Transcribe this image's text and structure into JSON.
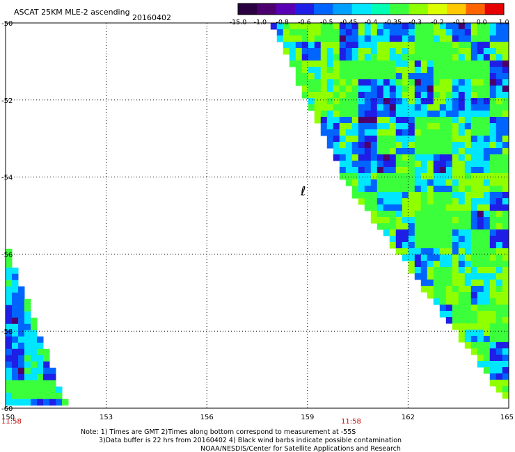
{
  "chart_data": {
    "type": "heatmap",
    "title": "ASCAT 25KM MLE-2 ascending",
    "date": "20160402",
    "x_ticks": [
      "150",
      "153",
      "156",
      "159",
      "162",
      "165"
    ],
    "y_ticks": [
      "-50",
      "-52",
      "-54",
      "-56",
      "-58",
      "-60"
    ],
    "xlim": [
      150,
      165
    ],
    "ylim": [
      -60,
      -50
    ],
    "grid": true,
    "time_labels": [
      {
        "lon": 150,
        "text": "11:58"
      },
      {
        "lon": 161,
        "text": "11:58"
      }
    ],
    "colorbar": {
      "labels": [
        "-15.0",
        "-1.0",
        "-0.8",
        "-0.6",
        "-0.5",
        "-0.45",
        "-0.4",
        "-0.35",
        "-0.3",
        "-0.2",
        "-0.1",
        "0.0",
        "1.0"
      ],
      "colors": [
        "#2a0040",
        "#4b006e",
        "#5a00b4",
        "#1e1ee6",
        "#0064ff",
        "#00a0ff",
        "#00e6ff",
        "#00ffb4",
        "#3cff3c",
        "#90ff00",
        "#dcff00",
        "#ffc800",
        "#ff6400",
        "#e60000"
      ]
    },
    "swaths": [
      {
        "name": "east",
        "vertices": [
          [
            157.9,
            -50
          ],
          [
            165,
            -50
          ],
          [
            165,
            -59.9
          ],
          [
            160.1,
            -54.1
          ]
        ],
        "predominant_colors": [
          "#3cff3c",
          "#90ff00",
          "#00e6ff",
          "#0064ff",
          "#1e1ee6",
          "#4b006e"
        ]
      },
      {
        "name": "west",
        "vertices": [
          [
            150,
            -55.7
          ],
          [
            151.8,
            -59.9
          ],
          [
            150,
            -59.9
          ]
        ],
        "predominant_colors": [
          "#3cff3c",
          "#00e6ff",
          "#0064ff",
          "#1e1ee6",
          "#4b006e"
        ]
      }
    ],
    "annotation_glyph": "ℓ"
  },
  "notes": {
    "line1": "Note: 1) Times are GMT 2)Times along bottom correspond to measurement at -55S",
    "line2": "3)Data buffer is 22 hrs from 20160402 4) Black wind barbs indicate possible contamination",
    "line3": "NOAA/NESDIS/Center for Satellite Applications and Research"
  }
}
